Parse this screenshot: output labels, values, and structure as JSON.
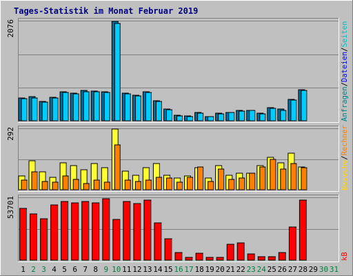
{
  "title": "Tages-Statistik im Monat Februar 2019",
  "colors": {
    "background": "#c0c0c0",
    "title": "#000080",
    "requests": "#008080",
    "files": "#0000ff",
    "visits": "#ffff00",
    "sites": "#00ffff",
    "kb": "#ff0000",
    "visits_text": "#ffd700",
    "sites_text": "#00c0c0",
    "visits_bar": "#ffff33",
    "sites_bar": "#ff8000",
    "kb_bar": "#ff0000",
    "requests_bar": "#00ccff",
    "weekend_label": "#008040",
    "weekday_label": "#000000"
  },
  "chart_data": [
    {
      "type": "bar",
      "panel": "top",
      "ytick": "2076",
      "ylim": [
        0,
        2076
      ],
      "categories": [
        "1",
        "2",
        "3",
        "4",
        "5",
        "6",
        "7",
        "8",
        "9",
        "10",
        "11",
        "12",
        "13",
        "14",
        "15",
        "16",
        "17",
        "18",
        "19",
        "20",
        "21",
        "22",
        "23",
        "24",
        "25",
        "26",
        "27",
        "28",
        "29",
        "30",
        "31"
      ],
      "weekend": [
        "2",
        "3",
        "9",
        "10",
        "16",
        "17",
        "23",
        "24",
        "30",
        "31"
      ],
      "legend": [
        {
          "text": "Anfragen",
          "color": "#008080"
        },
        {
          "text": "/",
          "color": "#000000"
        },
        {
          "text": "Dateien",
          "color": "#0000ff"
        },
        {
          "text": "/",
          "color": "#000000"
        },
        {
          "text": "Seiten",
          "color": "#00c0c0"
        }
      ],
      "series": [
        {
          "values": [
            480,
            500,
            410,
            490,
            610,
            580,
            630,
            620,
            610,
            2076,
            580,
            540,
            610,
            420,
            250,
            110,
            100,
            180,
            90,
            160,
            180,
            210,
            220,
            160,
            280,
            240,
            450,
            650,
            0,
            0,
            0
          ]
        },
        {
          "values": [
            460,
            480,
            390,
            470,
            590,
            560,
            610,
            600,
            590,
            2030,
            560,
            520,
            590,
            400,
            230,
            100,
            90,
            160,
            80,
            150,
            170,
            200,
            210,
            150,
            260,
            220,
            430,
            630,
            0,
            0,
            0
          ]
        }
      ]
    },
    {
      "type": "bar",
      "panel": "middle",
      "ytick": "292",
      "ylim": [
        0,
        292
      ],
      "categories": [
        "1",
        "2",
        "3",
        "4",
        "5",
        "6",
        "7",
        "8",
        "9",
        "10",
        "11",
        "12",
        "13",
        "14",
        "15",
        "16",
        "17",
        "18",
        "19",
        "20",
        "21",
        "22",
        "23",
        "24",
        "25",
        "26",
        "27",
        "28",
        "29",
        "30",
        "31"
      ],
      "legend": [
        {
          "text": "Besuche",
          "color": "#ffd700"
        },
        {
          "text": "/",
          "color": "#000000"
        },
        {
          "text": "Rechner",
          "color": "#ff8000"
        }
      ],
      "series": [
        {
          "values": [
            65,
            140,
            85,
            60,
            130,
            115,
            95,
            125,
            105,
            292,
            90,
            70,
            105,
            125,
            70,
            55,
            65,
            105,
            55,
            115,
            70,
            80,
            80,
            115,
            155,
            130,
            175,
            110,
            0,
            0,
            0
          ]
        },
        {
          "values": [
            45,
            85,
            40,
            35,
            65,
            50,
            30,
            45,
            35,
            215,
            45,
            40,
            45,
            60,
            55,
            35,
            60,
            110,
            40,
            100,
            50,
            55,
            80,
            110,
            145,
            100,
            125,
            105,
            0,
            0,
            0
          ]
        }
      ]
    },
    {
      "type": "bar",
      "panel": "bottom",
      "ytick": "53701",
      "ylim": [
        0,
        53701
      ],
      "categories": [
        "1",
        "2",
        "3",
        "4",
        "5",
        "6",
        "7",
        "8",
        "9",
        "10",
        "11",
        "12",
        "13",
        "14",
        "15",
        "16",
        "17",
        "18",
        "19",
        "20",
        "21",
        "22",
        "23",
        "24",
        "25",
        "26",
        "27",
        "28",
        "29",
        "30",
        "31"
      ],
      "legend": [
        {
          "text": "kB",
          "color": "#ff0000"
        }
      ],
      "series": [
        {
          "values": [
            45000,
            40000,
            36000,
            47500,
            51000,
            49500,
            50500,
            49500,
            53000,
            35000,
            50500,
            49000,
            52000,
            32000,
            18500,
            6500,
            2500,
            6000,
            2500,
            2500,
            13500,
            15000,
            5500,
            3000,
            3000,
            6500,
            28500,
            52000,
            0,
            0,
            0
          ]
        }
      ]
    }
  ]
}
